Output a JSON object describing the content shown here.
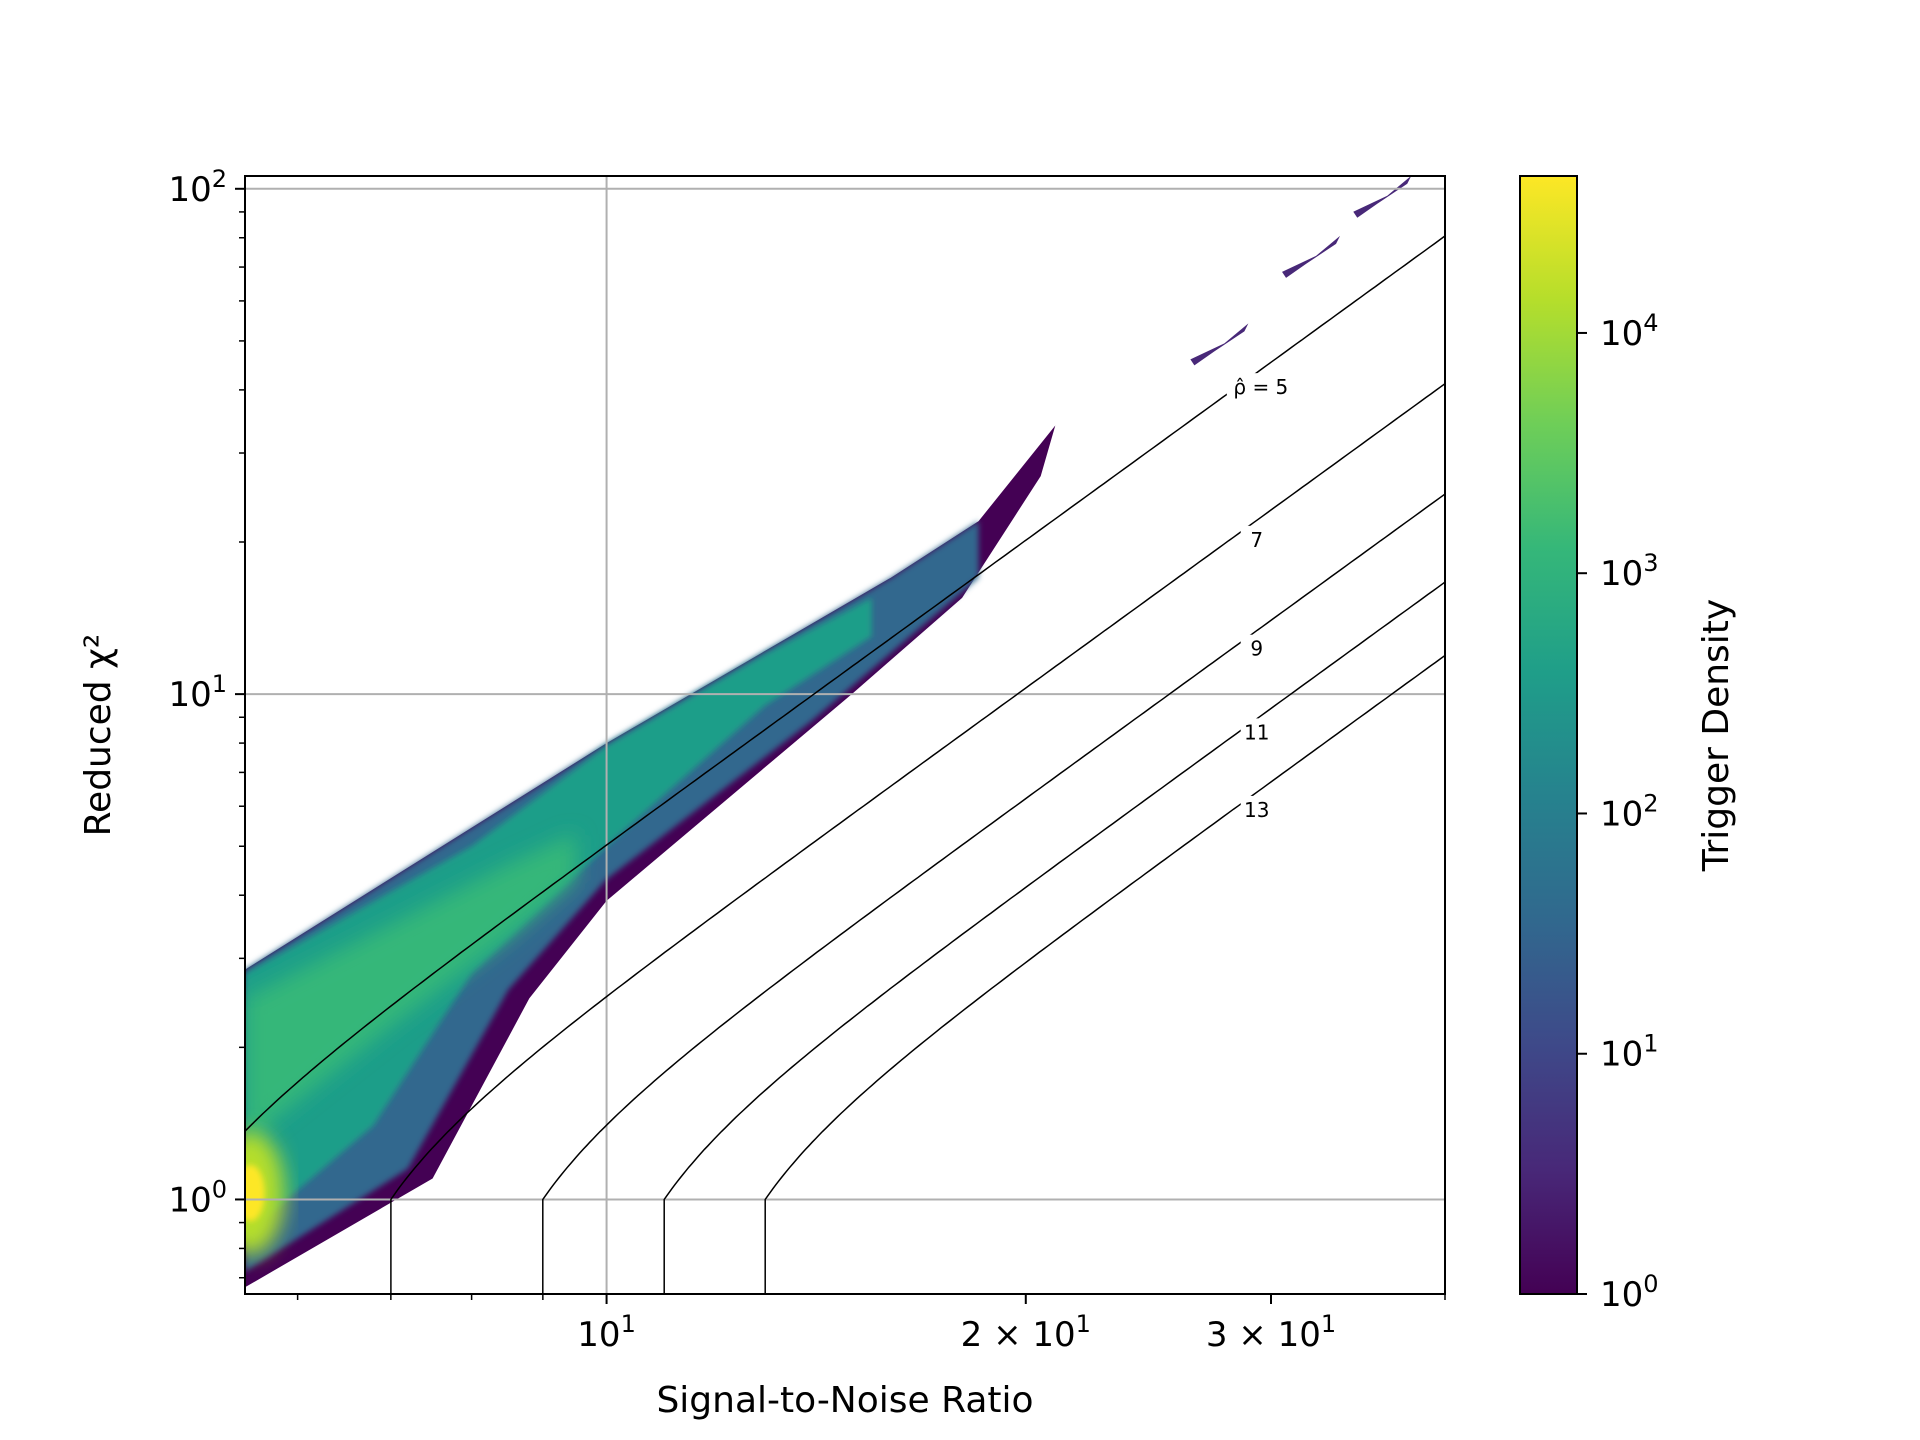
{
  "chart_data": {
    "type": "heatmap",
    "title": "",
    "xlabel": "Signal-to-Noise Ratio",
    "ylabel": "Reduced χ²",
    "xscale": "log",
    "yscale": "log",
    "xlim": [
      5.5,
      40
    ],
    "ylim": [
      0.65,
      106
    ],
    "grid": true,
    "x_ticks": [
      {
        "value": 10,
        "base": "10",
        "exp": "1",
        "mult": ""
      },
      {
        "value": 20,
        "base": "10",
        "exp": "1",
        "mult": "2 × "
      },
      {
        "value": 30,
        "base": "10",
        "exp": "1",
        "mult": "3 × "
      }
    ],
    "y_ticks": [
      {
        "value": 1,
        "base": "10",
        "exp": "0"
      },
      {
        "value": 10,
        "base": "10",
        "exp": "1"
      },
      {
        "value": 100,
        "base": "10",
        "exp": "2"
      }
    ],
    "colorbar": {
      "label": "Trigger Density",
      "scale": "log",
      "range": [
        1,
        45000
      ],
      "ticks": [
        {
          "value": 1,
          "base": "10",
          "exp": "0"
        },
        {
          "value": 10,
          "base": "10",
          "exp": "1"
        },
        {
          "value": 100,
          "base": "10",
          "exp": "2"
        },
        {
          "value": 1000,
          "base": "10",
          "exp": "3"
        },
        {
          "value": 10000,
          "base": "10",
          "exp": "4"
        }
      ],
      "colormap": [
        "#440154",
        "#482878",
        "#3e4989",
        "#31688e",
        "#26828e",
        "#1f9e89",
        "#35b779",
        "#6ece58",
        "#b5de2b",
        "#fde725"
      ]
    },
    "contours": [
      {
        "rho": 5,
        "label": "ρ̂ = 5",
        "label_at": [
          29.5,
          40.5
        ]
      },
      {
        "rho": 7,
        "label": "7",
        "label_at": [
          29.3,
          20.2
        ]
      },
      {
        "rho": 9,
        "label": "9",
        "label_at": [
          29.3,
          12.3
        ]
      },
      {
        "rho": 11,
        "label": "11",
        "label_at": [
          29.3,
          8.4
        ]
      },
      {
        "rho": 13,
        "label": "13",
        "label_at": [
          29.3,
          5.9
        ]
      }
    ],
    "density_band": {
      "description_free": true,
      "upper_edge": [
        [
          5.5,
          2.85
        ],
        [
          10,
          8
        ],
        [
          16,
          17
        ],
        [
          18.5,
          22
        ],
        [
          21,
          34
        ]
      ],
      "lower_edge": [
        [
          5.5,
          0.67
        ],
        [
          7.5,
          1.1
        ],
        [
          8.8,
          2.5
        ],
        [
          10,
          3.9
        ],
        [
          15,
          10
        ],
        [
          18,
          15.5
        ],
        [
          20.5,
          27
        ]
      ],
      "peak": [
        5.55,
        1.03
      ],
      "islands": [
        [
          27.5,
          49
        ],
        [
          32,
          73
        ],
        [
          36,
          96
        ]
      ]
    }
  }
}
